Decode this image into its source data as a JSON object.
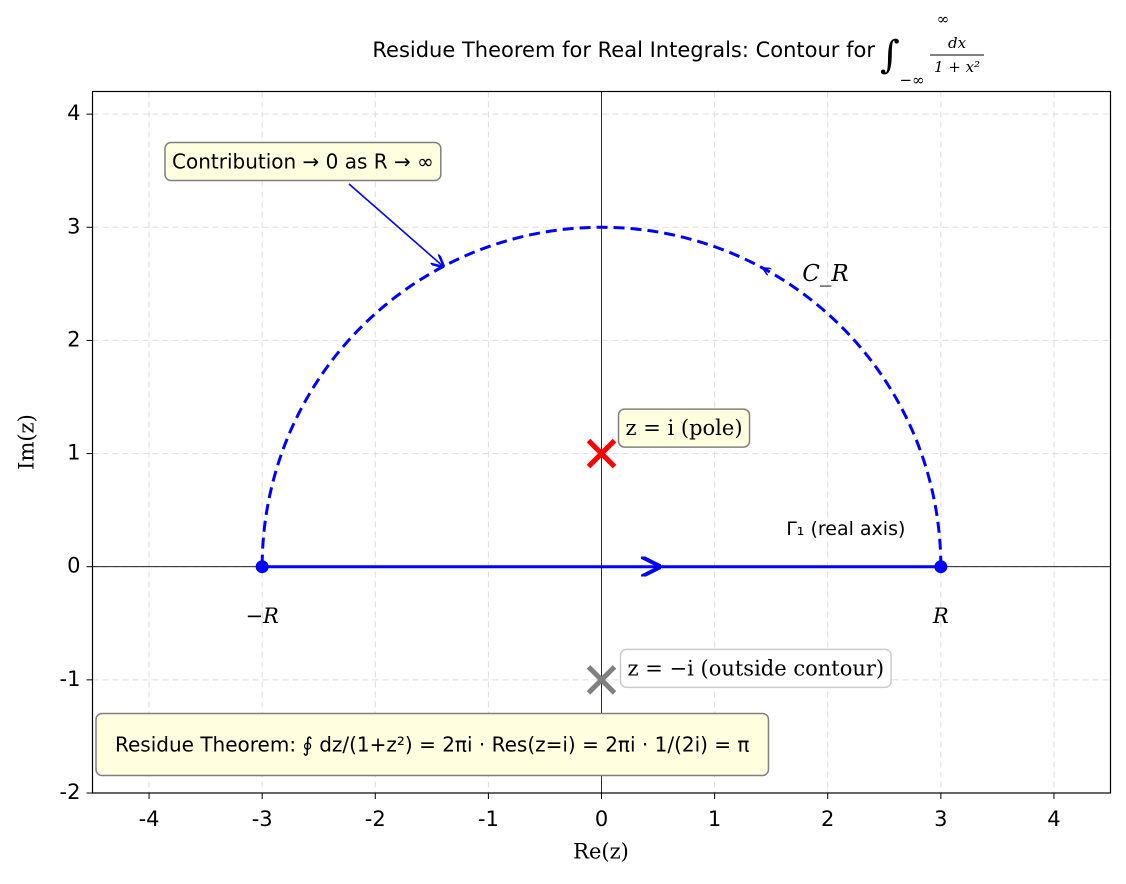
{
  "chart_data": {
    "type": "contour",
    "title": "Residue Theorem for Real Integrals: Contour for",
    "title_math": {
      "integral": "∫",
      "lower": "−∞",
      "upper": "∞",
      "numerator": "dx",
      "denominator": "1 + x²"
    },
    "xlabel": "Re(z)",
    "ylabel": "Im(z)",
    "xlim": [
      -4.5,
      4.5
    ],
    "ylim": [
      -2,
      4.2
    ],
    "xticks": [
      -4,
      -3,
      -2,
      -1,
      0,
      1,
      2,
      3,
      4
    ],
    "yticks": [
      -2,
      -1,
      0,
      1,
      2,
      3,
      4
    ],
    "grid": true,
    "radius": 3,
    "contour_color": "blue",
    "endpoint_labels": [
      "−R",
      "R"
    ],
    "arc_label": "C_R",
    "real_axis_label": "Γ₁ (real axis)",
    "annotation": "Contribution → 0 as R → ∞",
    "poles": [
      {
        "label": "z = i  (pole)",
        "x": 0,
        "y": 1,
        "color": "red"
      },
      {
        "label": "z = −i  (outside contour)",
        "x": 0,
        "y": -1,
        "color": "gray"
      }
    ],
    "formula": "Residue Theorem: ∮ dz/(1+z²) = 2πi · Res(z=i) = 2πi · 1/(2i) = π"
  }
}
